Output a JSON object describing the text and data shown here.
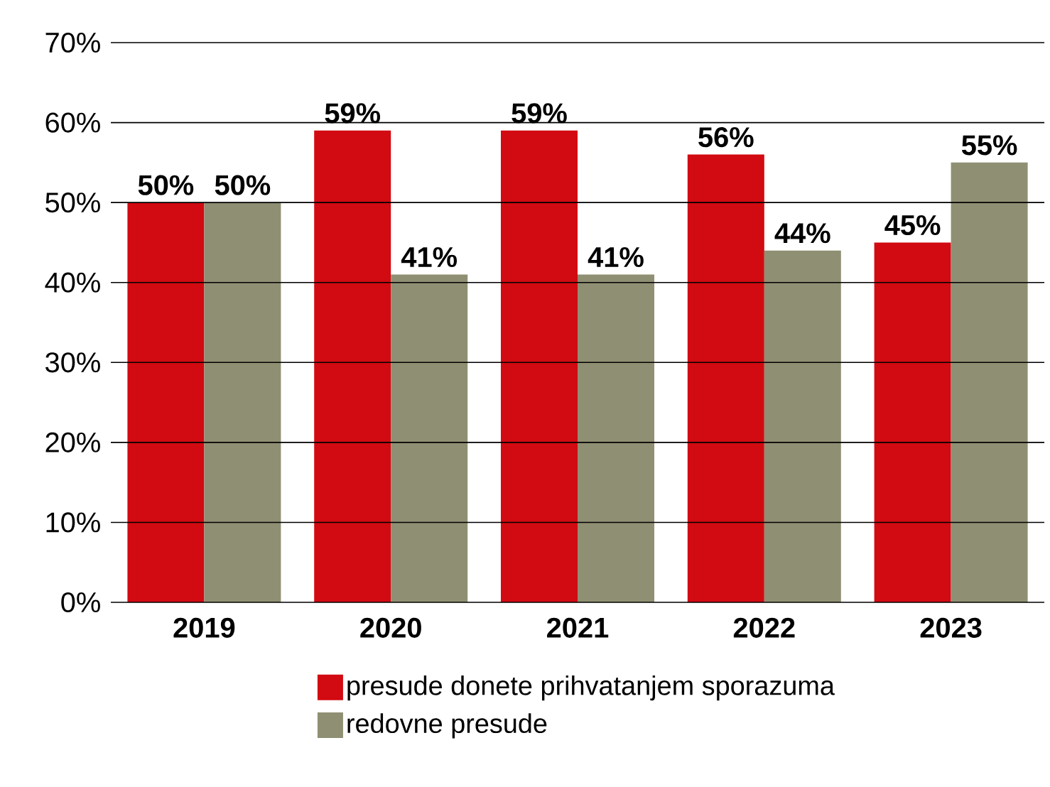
{
  "chart_data": {
    "type": "bar",
    "categories": [
      "2019",
      "2020",
      "2021",
      "2022",
      "2023"
    ],
    "series": [
      {
        "name": "presude donete prihvatanjem sporazuma",
        "color": "#d20a11",
        "values": [
          50,
          59,
          59,
          56,
          45
        ],
        "value_labels": [
          "50%",
          "59%",
          "59%",
          "56%",
          "45%"
        ]
      },
      {
        "name": "redovne presude",
        "color": "#8f8f73",
        "values": [
          50,
          41,
          41,
          44,
          55
        ],
        "value_labels": [
          "50%",
          "41%",
          "41%",
          "44%",
          "55%"
        ]
      }
    ],
    "ylim": [
      0,
      70
    ],
    "yticks": [
      {
        "value": 0,
        "label": "0%"
      },
      {
        "value": 10,
        "label": "10%"
      },
      {
        "value": 20,
        "label": "20%"
      },
      {
        "value": 30,
        "label": "30%"
      },
      {
        "value": 40,
        "label": "40%"
      },
      {
        "value": 50,
        "label": "50%"
      },
      {
        "value": 60,
        "label": "60%"
      },
      {
        "value": 70,
        "label": "70%"
      }
    ],
    "grid": "y",
    "legend": "bottom"
  }
}
